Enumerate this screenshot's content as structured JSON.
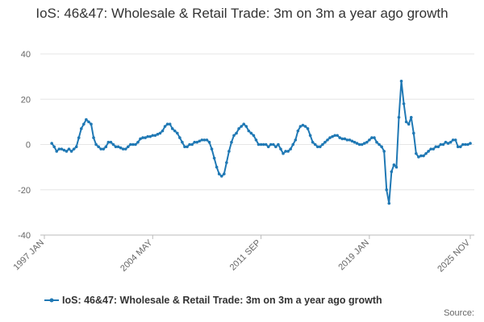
{
  "chart_data": {
    "type": "line",
    "title": "IoS: 46&47: Wholesale & Retail Trade: 3m on 3m a year ago growth",
    "source": "Source:",
    "categories": [
      "1997 JAN",
      null,
      null,
      null,
      null,
      null,
      null,
      null,
      null,
      null,
      null,
      null,
      null,
      null,
      null,
      null,
      null,
      null,
      null,
      null,
      null,
      null,
      null,
      null,
      null,
      null,
      null,
      null,
      null,
      null,
      null,
      null,
      null,
      null,
      null,
      null,
      null,
      null,
      null,
      null,
      null,
      null,
      null,
      null,
      "2004 MAY",
      null,
      null,
      null,
      null,
      null,
      null,
      null,
      null,
      null,
      null,
      null,
      null,
      null,
      null,
      null,
      null,
      null,
      null,
      null,
      null,
      null,
      null,
      null,
      null,
      null,
      null,
      null,
      null,
      null,
      null,
      null,
      null,
      null,
      null,
      null,
      null,
      null,
      null,
      null,
      null,
      null,
      null,
      null,
      "2011 SEP",
      null,
      null,
      null,
      null,
      null,
      null,
      null,
      null,
      null,
      null,
      null,
      null,
      null,
      null,
      null,
      null,
      null,
      null,
      null,
      null,
      null,
      null,
      null,
      null,
      null,
      null,
      null,
      null,
      null,
      null,
      null,
      null,
      null,
      null,
      null,
      null,
      null,
      null,
      null,
      null,
      null,
      null,
      null,
      "2019 JAN",
      null,
      null,
      null,
      null,
      null,
      null,
      null,
      null,
      null,
      null,
      null,
      null,
      null,
      null,
      null,
      null,
      null,
      null,
      null,
      null,
      null,
      null,
      null,
      null,
      null,
      null,
      null,
      null,
      null,
      null,
      null,
      null,
      null,
      null,
      null,
      null,
      null,
      null,
      null,
      null,
      "2025 NOV"
    ],
    "series": [
      {
        "name": "IoS: 46&47: Wholesale & Retail Trade: 3m on 3m a year ago growth",
        "color": "#1f78b4",
        "values": [
          null,
          null,
          null,
          0.5,
          -1,
          -3,
          -2,
          -2,
          -2.5,
          -3,
          -2,
          -3,
          -2,
          -1,
          3,
          7,
          9,
          11,
          10,
          9,
          3,
          0,
          -1,
          -2,
          -2,
          -1,
          1,
          1,
          0,
          -1,
          -1,
          -1.5,
          -2,
          -2,
          -1,
          0,
          0,
          0,
          1,
          2.5,
          3,
          3,
          3.5,
          3.5,
          4,
          4,
          4.5,
          5,
          6,
          8,
          9,
          9,
          7,
          6,
          5,
          3,
          1,
          -1,
          -1,
          0,
          0,
          1,
          1,
          1.5,
          2,
          2,
          2,
          1,
          -2,
          -6,
          -10,
          -13,
          -14,
          -13,
          -8,
          -3,
          1,
          4,
          5,
          7,
          8,
          9,
          8,
          6,
          5,
          4,
          2,
          0,
          0,
          0,
          0,
          -1,
          0,
          0,
          -1,
          0,
          -2,
          -4,
          -3,
          -3,
          -2,
          0,
          2,
          6,
          8,
          8.5,
          8,
          7,
          4,
          1,
          0,
          -1,
          -1,
          0,
          1,
          2,
          3,
          3.5,
          4,
          4,
          3,
          2.5,
          2.5,
          2,
          2,
          1.5,
          1,
          0.5,
          0,
          0,
          0.5,
          1,
          2,
          3,
          3,
          1,
          0,
          -1,
          -3,
          -20,
          -26,
          -12,
          -9,
          -10,
          12,
          28,
          18,
          10,
          9,
          12,
          5,
          -4,
          -5.5,
          -5,
          -5,
          -4,
          -3,
          -2,
          -2,
          -1,
          -1,
          0,
          0,
          1,
          0.5,
          1,
          2,
          2,
          -1,
          -1,
          0,
          0,
          0,
          0.5
        ]
      }
    ],
    "ylim": [
      -40,
      40
    ],
    "yticks": [
      -40,
      -20,
      0,
      20,
      40
    ],
    "grid": true
  }
}
